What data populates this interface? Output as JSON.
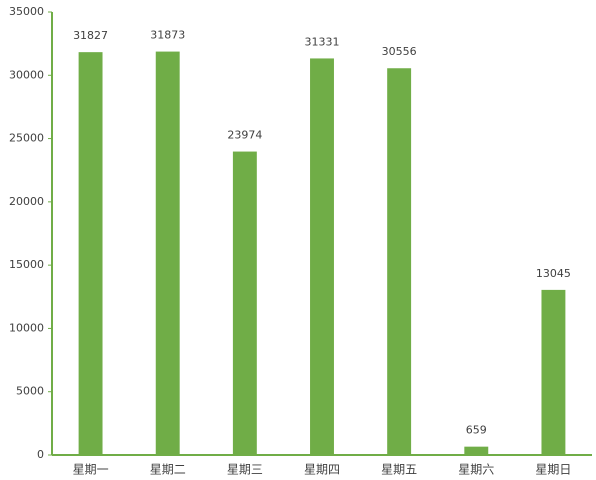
{
  "chart_data": {
    "type": "bar",
    "categories": [
      "星期一",
      "星期二",
      "星期三",
      "星期四",
      "星期五",
      "星期六",
      "星期日"
    ],
    "values": [
      31827,
      31873,
      23974,
      31331,
      30556,
      659,
      13045
    ],
    "color": "#70ad47",
    "ylim": [
      0,
      35000
    ],
    "yticks": [
      0,
      5000,
      10000,
      15000,
      20000,
      25000,
      30000,
      35000
    ],
    "grid": false
  }
}
